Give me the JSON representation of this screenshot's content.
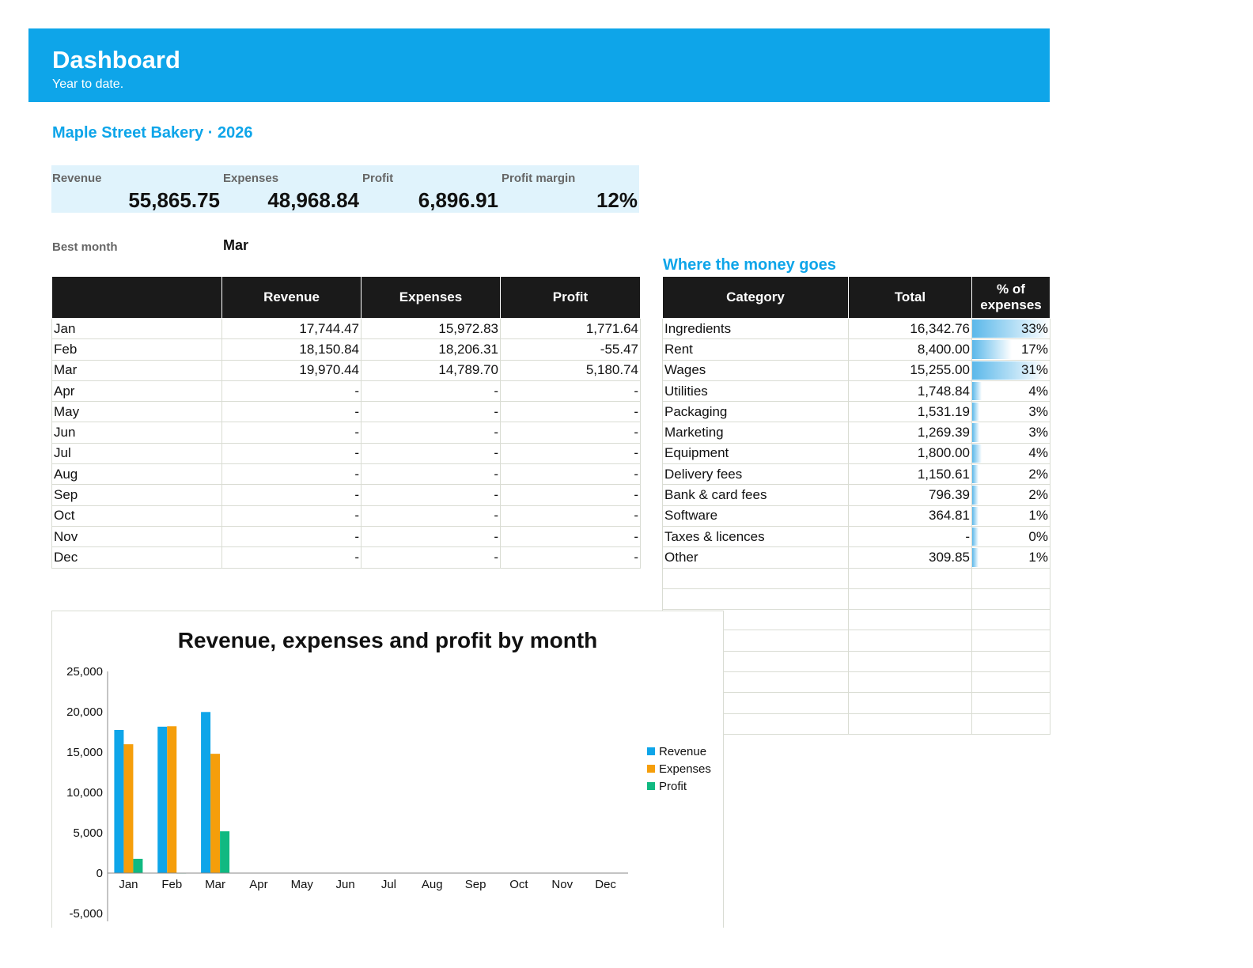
{
  "header": {
    "title": "Dashboard",
    "subtitle": "Year to date."
  },
  "company": "Maple Street Bakery · 2026",
  "kpis": [
    {
      "label": "Revenue",
      "value": "55,865.75"
    },
    {
      "label": "Expenses",
      "value": "48,968.84"
    },
    {
      "label": "Profit",
      "value": "6,896.91"
    },
    {
      "label": "Profit margin",
      "value": "12%"
    }
  ],
  "best_month": {
    "label": "Best month",
    "value": "Mar"
  },
  "monthly": {
    "headers": [
      "",
      "Revenue",
      "Expenses",
      "Profit"
    ],
    "rows": [
      [
        "Jan",
        "17,744.47",
        "15,972.83",
        "1,771.64"
      ],
      [
        "Feb",
        "18,150.84",
        "18,206.31",
        "-55.47"
      ],
      [
        "Mar",
        "19,970.44",
        "14,789.70",
        "5,180.74"
      ],
      [
        "Apr",
        "-",
        "-",
        "-"
      ],
      [
        "May",
        "-",
        "-",
        "-"
      ],
      [
        "Jun",
        "-",
        "-",
        "-"
      ],
      [
        "Jul",
        "-",
        "-",
        "-"
      ],
      [
        "Aug",
        "-",
        "-",
        "-"
      ],
      [
        "Sep",
        "-",
        "-",
        "-"
      ],
      [
        "Oct",
        "-",
        "-",
        "-"
      ],
      [
        "Nov",
        "-",
        "-",
        "-"
      ],
      [
        "Dec",
        "-",
        "-",
        "-"
      ]
    ]
  },
  "categories": {
    "title": "Where the money goes",
    "headers": [
      "Category",
      "Total",
      "% of expenses"
    ],
    "rows": [
      [
        "Ingredients",
        "16,342.76",
        "33%"
      ],
      [
        "Rent",
        "8,400.00",
        "17%"
      ],
      [
        "Wages",
        "15,255.00",
        "31%"
      ],
      [
        "Utilities",
        "1,748.84",
        "4%"
      ],
      [
        "Packaging",
        "1,531.19",
        "3%"
      ],
      [
        "Marketing",
        "1,269.39",
        "3%"
      ],
      [
        "Equipment",
        "1,800.00",
        "4%"
      ],
      [
        "Delivery fees",
        "1,150.61",
        "2%"
      ],
      [
        "Bank & card fees",
        "796.39",
        "2%"
      ],
      [
        "Software",
        "364.81",
        "1%"
      ],
      [
        "Taxes & licences",
        "-",
        "0%"
      ],
      [
        "Other",
        "309.85",
        "1%"
      ]
    ],
    "shares": [
      0.33,
      0.17,
      0.31,
      0.04,
      0.03,
      0.03,
      0.04,
      0.02,
      0.02,
      0.01,
      0.0,
      0.01
    ],
    "bar_color": "#5bb8ea",
    "empty_rows": 8
  },
  "chart_data": {
    "type": "bar",
    "title": "Revenue, expenses and profit by month",
    "categories": [
      "Jan",
      "Feb",
      "Mar",
      "Apr",
      "May",
      "Jun",
      "Jul",
      "Aug",
      "Sep",
      "Oct",
      "Nov",
      "Dec"
    ],
    "series": [
      {
        "name": "Revenue",
        "color": "#0ea5e9",
        "values": [
          17744.47,
          18150.84,
          19970.44,
          0,
          0,
          0,
          0,
          0,
          0,
          0,
          0,
          0
        ]
      },
      {
        "name": "Expenses",
        "color": "#f59e0b",
        "values": [
          15972.83,
          18206.31,
          14789.7,
          0,
          0,
          0,
          0,
          0,
          0,
          0,
          0,
          0
        ]
      },
      {
        "name": "Profit",
        "color": "#10b981",
        "values": [
          1771.64,
          -55.47,
          5180.74,
          0,
          0,
          0,
          0,
          0,
          0,
          0,
          0,
          0
        ]
      }
    ],
    "ylim": [
      -5000,
      25000
    ],
    "yticks": [
      "25,000",
      "20,000",
      "15,000",
      "10,000",
      "5,000",
      "0",
      "-5,000"
    ],
    "ytick_values": [
      25000,
      20000,
      15000,
      10000,
      5000,
      0,
      -5000
    ],
    "legend": "right",
    "grid": false
  }
}
